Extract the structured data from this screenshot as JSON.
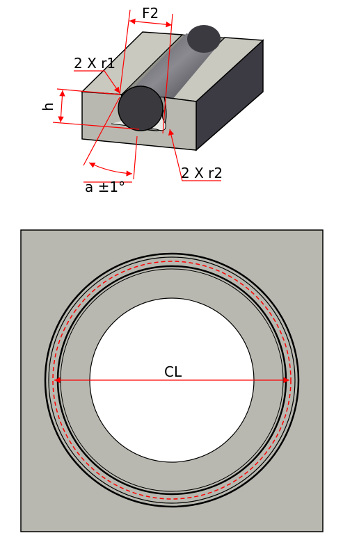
{
  "figure_top": {
    "labels": {
      "f2": "F2",
      "r1": "2 X r1",
      "h": "h",
      "r2": "2 X r2",
      "angle": "a ±1°"
    }
  },
  "figure_bottom": {
    "labels": {
      "cl": "CL"
    }
  },
  "colors": {
    "plate": "#b8b8b0",
    "plate_top": "#c9c9c0",
    "block_side": "#3c3a42",
    "ring_outline": "#000000",
    "dimension": "#ff0000",
    "hole": "#ffffff"
  }
}
